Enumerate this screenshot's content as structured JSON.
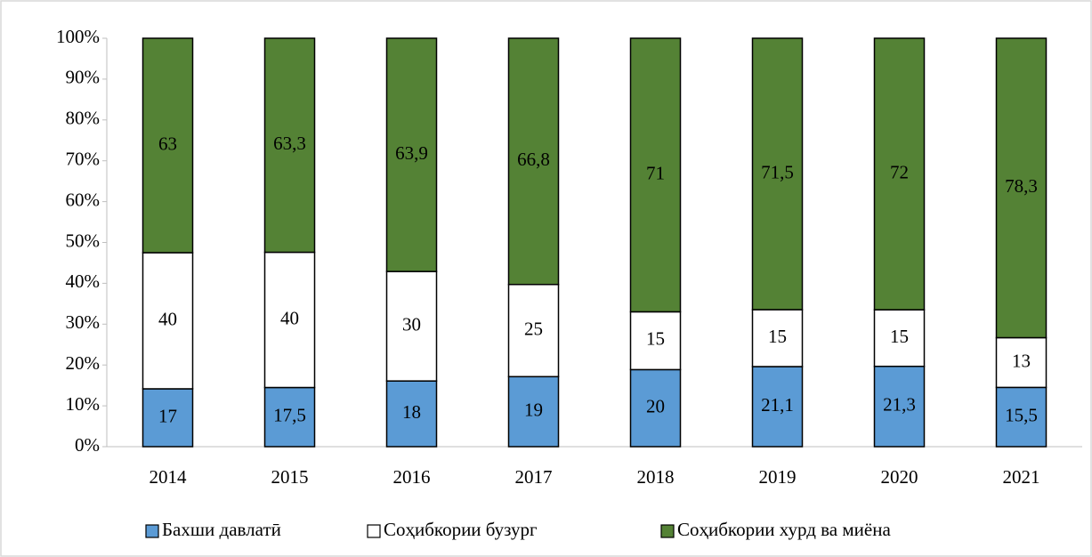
{
  "chart_data": {
    "type": "bar",
    "stacking": "percent",
    "categories": [
      "2014",
      "2015",
      "2016",
      "2017",
      "2018",
      "2019",
      "2020",
      "2021"
    ],
    "series": [
      {
        "name": "Бахши давлатӣ",
        "color": "#5b9bd5",
        "values": [
          17,
          17.5,
          18,
          19,
          20,
          21.1,
          21.3,
          15.5
        ],
        "value_labels": [
          "17",
          "17,5",
          "18",
          "19",
          "20",
          "21,1",
          "21,3",
          "15,5"
        ]
      },
      {
        "name": "Соҳибкории бузург",
        "color": "#ffffff",
        "values": [
          40,
          40,
          30,
          25,
          15,
          15,
          15,
          13
        ],
        "value_labels": [
          "40",
          "40",
          "30",
          "25",
          "15",
          "15",
          "15",
          "13"
        ]
      },
      {
        "name": "Соҳибкории хурд ва миёна",
        "color": "#548235",
        "values": [
          63,
          63.3,
          63.9,
          66.8,
          71,
          71.5,
          72,
          78.3
        ],
        "value_labels": [
          "63",
          "63,3",
          "63,9",
          "66,8",
          "71",
          "71,5",
          "72",
          "78,3"
        ]
      }
    ],
    "ylim": [
      0,
      100
    ],
    "yticks": [
      {
        "value": 0,
        "label": "0%"
      },
      {
        "value": 10,
        "label": "10%"
      },
      {
        "value": 20,
        "label": "20%"
      },
      {
        "value": 30,
        "label": "30%"
      },
      {
        "value": 40,
        "label": "40%"
      },
      {
        "value": 50,
        "label": "50%"
      },
      {
        "value": 60,
        "label": "60%"
      },
      {
        "value": 70,
        "label": "70%"
      },
      {
        "value": 80,
        "label": "80%"
      },
      {
        "value": 90,
        "label": "90%"
      },
      {
        "value": 100,
        "label": "100%"
      }
    ],
    "legend": "bottom"
  }
}
